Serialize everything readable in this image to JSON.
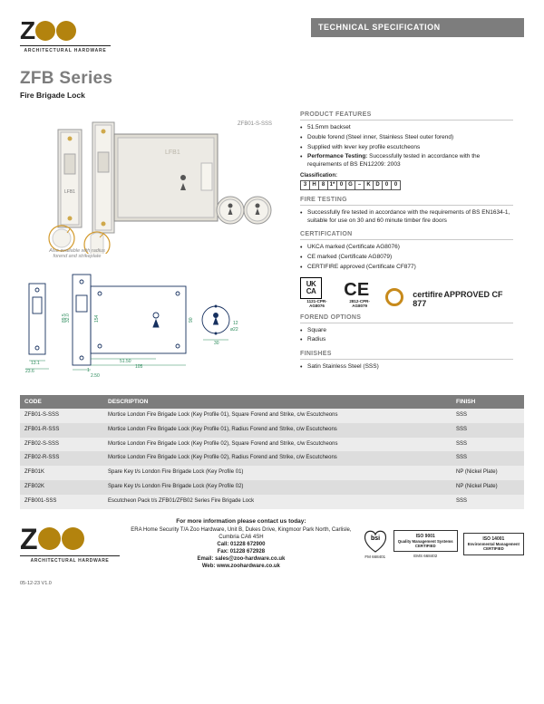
{
  "brand": {
    "name": "ZOO",
    "tagline": "ARCHITECTURAL HARDWARE",
    "accent": "#b3830e"
  },
  "specBar": "TECHNICAL SPECIFICATION",
  "title": {
    "series": "ZFB Series",
    "subtitle": "Fire Brigade Lock"
  },
  "drawing": {
    "topLabel": "ZFB01-S-SSS",
    "bodyLabel": "LFB1",
    "alsoNote": "Also available with radius forend and strikeplate",
    "dims": {
      "forend_h": "154",
      "body_h": "90",
      "bolt_h": "32.0",
      "strike_h": "89.5",
      "case_w": "105",
      "bs": "51.50",
      "lip1": "13.1",
      "lip2": "23.6",
      "key_d": "ø22",
      "cyl": "12",
      "edge": "1",
      "pad": "30",
      "step": "2.50"
    }
  },
  "features": {
    "head": "PRODUCT FEATURES",
    "items": [
      "51.5mm backset",
      "Double forend (Steel inner, Stainless Steel outer forend)",
      "Supplied with lever key profile escutcheons",
      "<strong>Performance Testing:</strong> Successfully tested in accordance with the requirements of BS EN12209: 2003"
    ],
    "classLabel": "Classification:",
    "classCells": [
      "3",
      "H",
      "8",
      "1*",
      "0",
      "G",
      "–",
      "K",
      "D",
      "0",
      "0"
    ]
  },
  "fireTesting": {
    "head": "FIRE TESTING",
    "items": [
      "Successfully fire tested in accordance with the requirements of BS EN1634-1, suitable for use on 30 and 60 minute timber fire doors"
    ]
  },
  "certification": {
    "head": "CERTIFICATION",
    "items": [
      "UKCA marked (Certificate AG8076)",
      "CE marked (Certificate AG8079)",
      "CERTIFIRE approved (Certificate CF877)"
    ],
    "ukcaNum": "1121-CPR-AG8076",
    "ceNum": "2812-CPR-AG8079",
    "certifire": "certifire",
    "certifireSub": "APPROVED CF 877"
  },
  "forend": {
    "head": "FOREND OPTIONS",
    "items": [
      "Square",
      "Radius"
    ]
  },
  "finishes": {
    "head": "FINISHES",
    "items": [
      "Satin Stainless Steel (SSS)"
    ]
  },
  "table": {
    "cols": [
      "CODE",
      "DESCRIPTION",
      "FINISH"
    ],
    "colWidths": [
      "90px",
      "auto",
      "70px"
    ],
    "rows": [
      [
        "ZFB01-S-SSS",
        "Mortice London Fire Brigade Lock (Key Profile 01), Square Forend and Strike, c/w Escutcheons",
        "SSS"
      ],
      [
        "ZFB01-R-SSS",
        "Mortice London Fire Brigade Lock (Key Profile 01), Radius Forend and Strike, c/w Escutcheons",
        "SSS"
      ],
      [
        "ZFB02-S-SSS",
        "Mortice London Fire Brigade Lock (Key Profile 02), Square Forend and Strike, c/w Escutcheons",
        "SSS"
      ],
      [
        "ZFB02-R-SSS",
        "Mortice London Fire Brigade Lock (Key Profile 02), Radius Forend and Strike, c/w Escutcheons",
        "SSS"
      ],
      [
        "ZFB01K",
        "Spare Key t/s London Fire Brigade Lock (Key Profile 01)",
        "NP (Nickel Plate)"
      ],
      [
        "ZFB02K",
        "Spare Key t/s London Fire Brigade Lock (Key Profile 02)",
        "NP (Nickel Plate)"
      ],
      [
        "ZFB001-SSS",
        "Escutcheon Pack t/s ZFB01/ZFB02 Series Fire Brigade Lock",
        "SSS"
      ]
    ]
  },
  "footer": {
    "contactHead": "For more information please contact us today:",
    "address": "ERA Home Security T/A Zoo Hardware, Unit B, Dukes Drive, Kingmoor Park North, Carlisle, Cumbria CA6 4SH",
    "call": "Call: 01228 672900",
    "fax": "Fax: 01228 672928",
    "email": "Email: sales@zoo-hardware.co.uk",
    "web": "Web: www.zoohardware.co.uk",
    "bsiNum1": "FM 668401",
    "bsiNum2": "EMS 668402",
    "iso1": {
      "t": "ISO 9001",
      "s": "Quality Management Systems",
      "c": "CERTIFIED"
    },
    "iso2": {
      "t": "ISO 14001",
      "s": "Environmental Management",
      "c": "CERTIFIED"
    },
    "pageRef": "05-12-23 V1.0"
  }
}
